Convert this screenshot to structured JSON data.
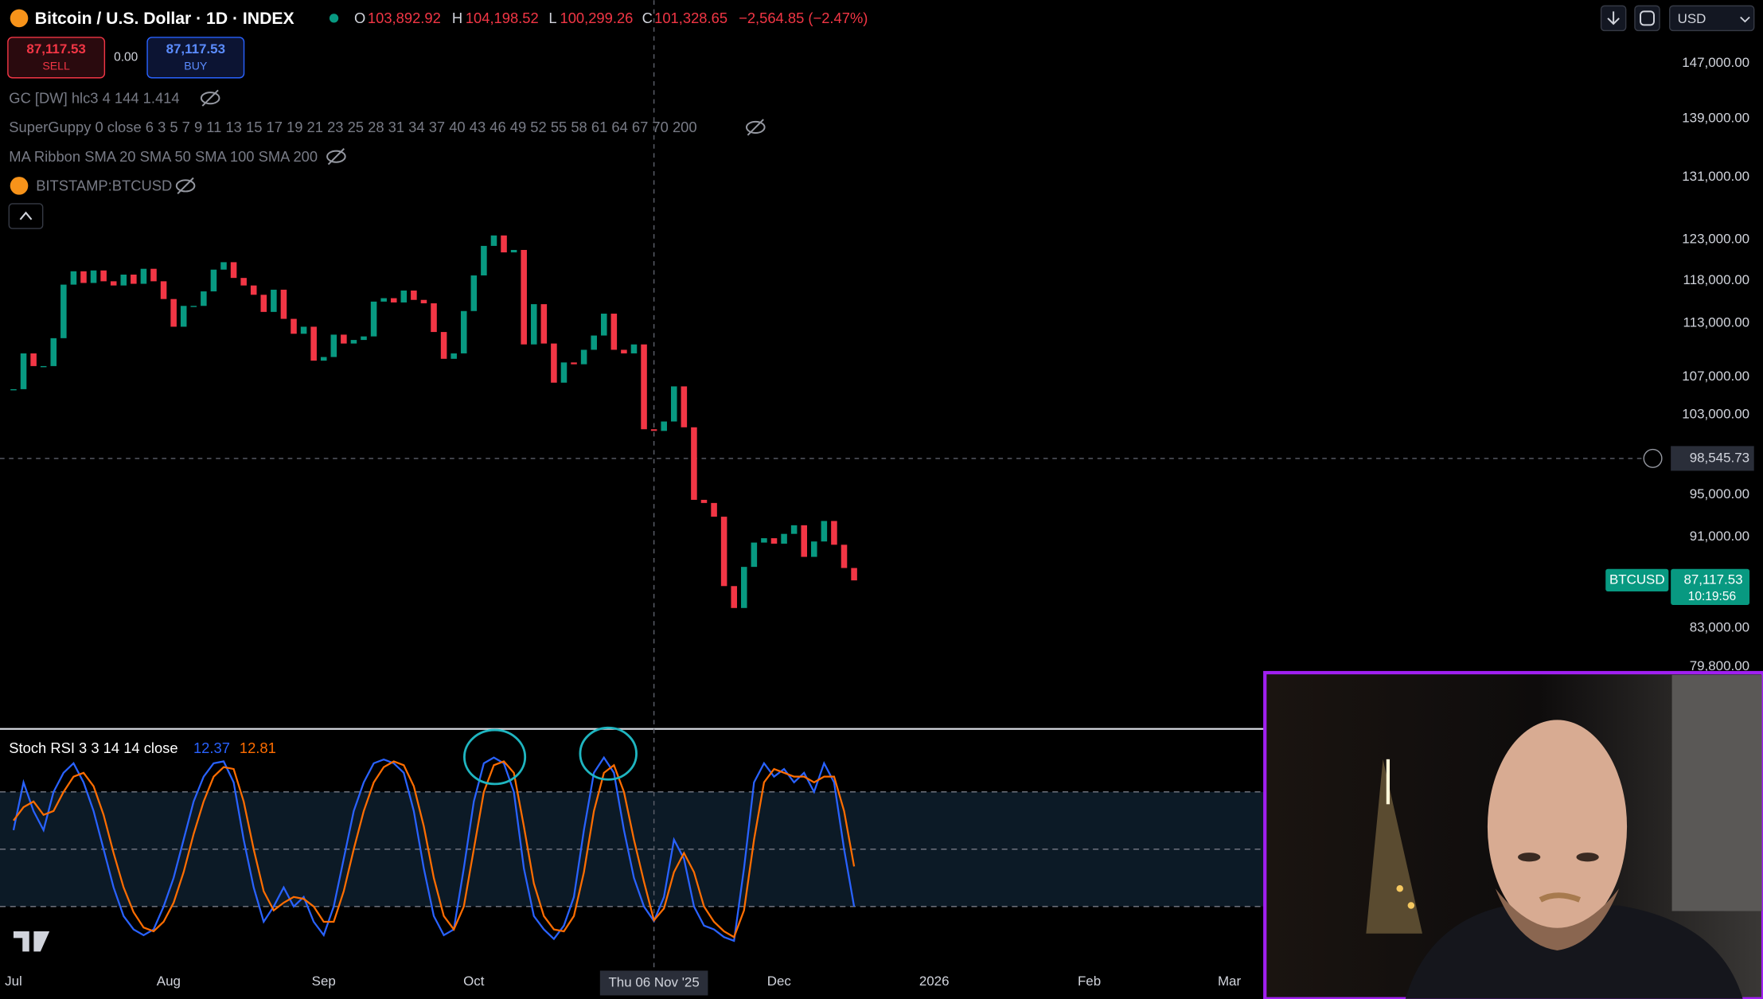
{
  "header": {
    "symbol": "Bitcoin / U.S. Dollar · 1D · INDEX",
    "open_label": "O",
    "open": "103,892.92",
    "high_label": "H",
    "high": "104,198.52",
    "low_label": "L",
    "low": "100,299.26",
    "close_label": "C",
    "close": "101,328.65",
    "change": "−2,564.85 (−2.47%)",
    "currency": "USD"
  },
  "trade": {
    "sell_price": "87,117.53",
    "sell": "SELL",
    "spread": "0.00",
    "buy_price": "87,117.53",
    "buy": "BUY"
  },
  "indicators": [
    "GC [DW] hlc3 4 144 1.414",
    "SuperGuppy 0 close 6 3 5 7 9 11 13 15 17 19 21 23 25 28 31 34 37 40 43 46 49 52 55 58 61 64 67 70 200",
    "MA Ribbon SMA 20 SMA 50 SMA 100 SMA 200",
    "BITSTAMP:BTCUSD"
  ],
  "chart_data": [
    {
      "type": "candlestick",
      "x": [
        0,
        2,
        4,
        6,
        8,
        10,
        12,
        14,
        16,
        18,
        20,
        22,
        24,
        26,
        28,
        30,
        32,
        34,
        36,
        38,
        40,
        42,
        44,
        46,
        48,
        50,
        52,
        54,
        56,
        58,
        60,
        62,
        64,
        66,
        68,
        70,
        72,
        74,
        76,
        78,
        80,
        82,
        84,
        86,
        88,
        90,
        92,
        94,
        96,
        98,
        100,
        102,
        104,
        106,
        108,
        110,
        112,
        114,
        116,
        118,
        120,
        122,
        124,
        126,
        128,
        130,
        132,
        134,
        136,
        138,
        140,
        142,
        144,
        146,
        148,
        150,
        152,
        154,
        156,
        158,
        160,
        162,
        164,
        166,
        168
      ],
      "values": [
        105700,
        109600,
        108200,
        108200,
        111300,
        117500,
        119100,
        117700,
        119200,
        117900,
        117400,
        118700,
        117600,
        119400,
        117900,
        115800,
        112600,
        115000,
        115000,
        116700,
        119300,
        120200,
        118300,
        117400,
        116300,
        114300,
        116900,
        113500,
        111800,
        112600,
        108800,
        109200,
        111700,
        110700,
        111100,
        111500,
        115500,
        115900,
        115400,
        116800,
        115700,
        115300,
        112000,
        109000,
        109600,
        114400,
        118600,
        122200,
        123500,
        121400,
        121700,
        110600,
        115200,
        110700,
        106400,
        108600,
        108400,
        110000,
        111600,
        114100,
        110000,
        109600,
        110600,
        101500,
        101328.65,
        102300,
        106000,
        101700,
        94500,
        94200,
        92900,
        86600,
        84700,
        88300,
        90500,
        90900,
        90400,
        91300,
        92100,
        89200,
        90600,
        92500,
        90300,
        88200,
        87100
      ],
      "colors": {
        "up": "#089981",
        "down": "#f23645"
      },
      "log_scale": true,
      "xlim": [
        -2.7,
        331
      ],
      "ylim": [
        75200,
        156700
      ],
      "xticks": [
        {
          "value": 0,
          "label": "Jul"
        },
        {
          "value": 31,
          "label": "Aug"
        },
        {
          "value": 62,
          "label": "Sep"
        },
        {
          "value": 92,
          "label": "Oct"
        },
        {
          "value": 153,
          "label": "Dec"
        },
        {
          "value": 184,
          "label": "2026"
        },
        {
          "value": 215,
          "label": "Feb"
        },
        {
          "value": 243,
          "label": "Mar"
        }
      ],
      "yticks": [
        {
          "value": 147000,
          "label": "147,000.00"
        },
        {
          "value": 139000,
          "label": "139,000.00"
        },
        {
          "value": 131000,
          "label": "131,000.00"
        },
        {
          "value": 123000,
          "label": "123,000.00"
        },
        {
          "value": 118000,
          "label": "118,000.00"
        },
        {
          "value": 113000,
          "label": "113,000.00"
        },
        {
          "value": 107000,
          "label": "107,000.00"
        },
        {
          "value": 103000,
          "label": "103,000.00"
        },
        {
          "value": 95000,
          "label": "95,000.00"
        },
        {
          "value": 91000,
          "label": "91,000.00"
        },
        {
          "value": 83000,
          "label": "83,000.00"
        },
        {
          "value": 79800,
          "label": "79,800.00"
        }
      ],
      "crosshair": {
        "x": {
          "value": 128,
          "label": "Thu 06 Nov '25"
        },
        "y": {
          "value": 98545.73,
          "label": "98,545.73"
        }
      },
      "last_price": {
        "value": 87117.53,
        "label": "87,117.53",
        "symbol": "BTCUSD",
        "countdown": "10:19:56",
        "color": "#089981"
      }
    },
    {
      "type": "line",
      "title": "Stoch RSI 3 3 14 14 close",
      "x": [
        0,
        2,
        4,
        6,
        8,
        10,
        12,
        14,
        16,
        18,
        20,
        22,
        24,
        26,
        28,
        30,
        32,
        34,
        36,
        38,
        40,
        42,
        44,
        46,
        48,
        50,
        52,
        54,
        56,
        58,
        60,
        62,
        64,
        66,
        68,
        70,
        72,
        74,
        76,
        78,
        80,
        82,
        84,
        86,
        88,
        90,
        92,
        94,
        96,
        98,
        100,
        102,
        104,
        106,
        108,
        110,
        112,
        114,
        116,
        118,
        120,
        122,
        124,
        126,
        128,
        130,
        132,
        134,
        136,
        138,
        140,
        142,
        144,
        146,
        148,
        150,
        152,
        154,
        156,
        158,
        160,
        162,
        164,
        166,
        168
      ],
      "series": [
        {
          "color": "#2962ff",
          "current_label": "12.37",
          "values": [
            60,
            85,
            70,
            60,
            80,
            90,
            95,
            85,
            70,
            50,
            30,
            15,
            8,
            5,
            8,
            20,
            35,
            55,
            75,
            88,
            95,
            96,
            85,
            55,
            30,
            12,
            20,
            30,
            20,
            25,
            12,
            5,
            20,
            45,
            70,
            85,
            95,
            97,
            95,
            90,
            70,
            40,
            15,
            5,
            8,
            40,
            75,
            95,
            98,
            95,
            80,
            40,
            15,
            8,
            3,
            10,
            25,
            60,
            90,
            98,
            90,
            60,
            35,
            20,
            12.37,
            25,
            55,
            45,
            20,
            10,
            8,
            4,
            2,
            40,
            85,
            95,
            88,
            92,
            85,
            90,
            80,
            95,
            85,
            50,
            20
          ]
        },
        {
          "color": "#ff6d00",
          "current_label": "12.81",
          "values": [
            65,
            72,
            75,
            68,
            70,
            80,
            88,
            90,
            83,
            68,
            48,
            30,
            17,
            9,
            7,
            12,
            22,
            38,
            58,
            75,
            88,
            93,
            92,
            75,
            50,
            28,
            18,
            22,
            25,
            24,
            20,
            12,
            12,
            28,
            50,
            70,
            85,
            93,
            96,
            94,
            83,
            62,
            35,
            15,
            8,
            20,
            50,
            80,
            94,
            96,
            90,
            62,
            32,
            15,
            8,
            7,
            15,
            38,
            70,
            90,
            94,
            80,
            55,
            33,
            12.81,
            19,
            38,
            48,
            38,
            20,
            12,
            7,
            4,
            18,
            55,
            85,
            92,
            90,
            88,
            88,
            85,
            88,
            88,
            70,
            41
          ]
        }
      ],
      "xlim": [
        -2.7,
        331
      ],
      "ylim": [
        -13,
        113
      ],
      "levels": [
        80,
        50,
        20
      ],
      "band_color": "#0c1a26"
    }
  ]
}
